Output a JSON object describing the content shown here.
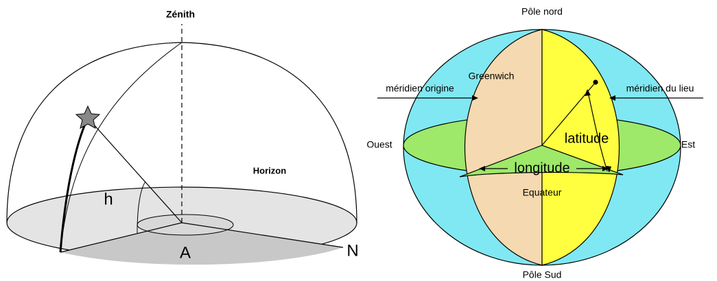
{
  "left": {
    "zenith": "Zénith",
    "horizon": "Horizon",
    "h": "h",
    "a": "A",
    "n": "N"
  },
  "right": {
    "north_pole": "Pôle nord",
    "south_pole": "Pôle Sud",
    "greenwich": "Greenwich",
    "prime_meridian": "méridien origine",
    "local_meridian": "méridien du lieu",
    "west": "Ouest",
    "east": "Est",
    "latitude": "latitude",
    "longitude": "longitude",
    "equator": "Equateur"
  }
}
